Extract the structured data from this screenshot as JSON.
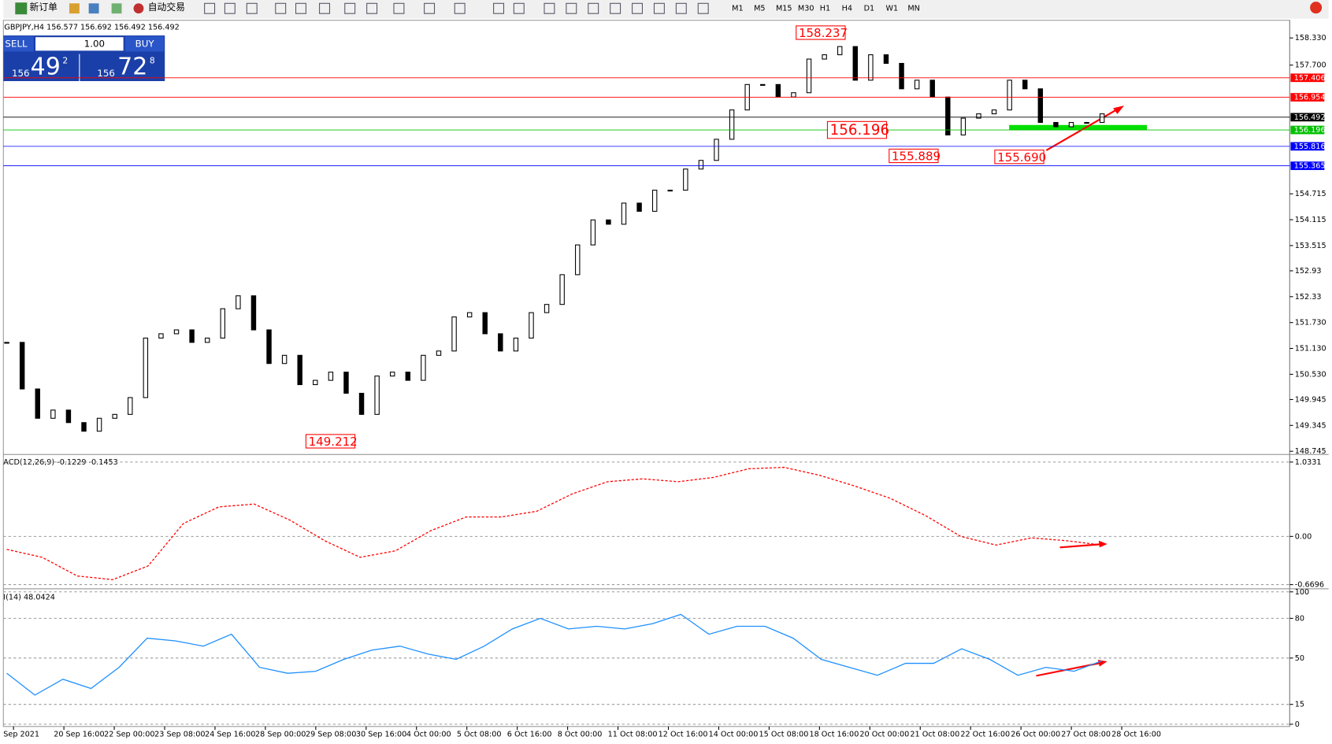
{
  "toolbar": {
    "new_order": "新订单",
    "auto_trading": "自动交易",
    "timeframes": [
      "M1",
      "M5",
      "M15",
      "M30",
      "H1",
      "H4",
      "D1",
      "W1",
      "MN"
    ]
  },
  "trade_panel": {
    "sell": "SELL",
    "lots": "1.00",
    "buy": "BUY",
    "bid_big": "156",
    "bid_main": "49",
    "bid_sup": "2",
    "ask_big": "156",
    "ask_main": "72",
    "ask_sup": "8"
  },
  "time_labels": [
    "Sep 2021",
    "20 Sep 16:00",
    "22 Sep 00:00",
    "23 Sep 08:00",
    "24 Sep 16:00",
    "28 Sep 00:00",
    "29 Sep 08:00",
    "30 Sep 16:00",
    "4 Oct 00:00",
    "5 Oct 08:00",
    "6 Oct 16:00",
    "8 Oct 00:00",
    "11 Oct 08:00",
    "12 Oct 16:00",
    "14 Oct 00:00",
    "15 Oct 08:00",
    "18 Oct 16:00",
    "20 Oct 00:00",
    "21 Oct 08:00",
    "22 Oct 16:00",
    "26 Oct 00:00",
    "27 Oct 08:00",
    "28 Oct 16:00"
  ],
  "chart_data": [
    {
      "type": "candlestick",
      "title": "GBPJPY,H4  156.577 156.692 156.492 156.492",
      "color": "#000000",
      "values": [
        151.27,
        150.19,
        149.51,
        149.7,
        149.41,
        149.21,
        149.51,
        149.6,
        149.99,
        151.37,
        151.47,
        151.56,
        151.27,
        151.37,
        152.05,
        152.35,
        151.56,
        150.78,
        150.97,
        150.29,
        150.39,
        150.58,
        150.09,
        149.6,
        150.49,
        150.58,
        150.39,
        150.97,
        151.07,
        151.86,
        151.96,
        151.47,
        151.07,
        151.37,
        151.96,
        152.15,
        152.84,
        153.53,
        154.11,
        154.01,
        154.5,
        154.31,
        154.8,
        154.8,
        155.29,
        155.49,
        155.98,
        156.66,
        157.25,
        157.25,
        156.96,
        157.06,
        157.84,
        157.94,
        158.13,
        157.35,
        157.94,
        157.74,
        157.15,
        157.35,
        156.96,
        156.08,
        156.47,
        156.57,
        156.66,
        157.35,
        157.15,
        156.37,
        156.27,
        156.37,
        156.37,
        156.57
      ],
      "ylim": [
        148.69,
        158.72
      ],
      "yticks": [
        {
          "value": 158.33,
          "label": "158.330"
        },
        {
          "value": 157.7,
          "label": "157.700"
        },
        154.715,
        154.115,
        153.515,
        152.93,
        152.33,
        {
          "value": 151.73,
          "label": "151.730"
        },
        {
          "value": 151.13,
          "label": "151.130"
        },
        {
          "value": 150.53,
          "label": "150.530"
        },
        149.945,
        149.345,
        148.745
      ],
      "price_lines": [
        {
          "value": 157.406,
          "color": "#ff0000"
        },
        {
          "value": 156.954,
          "color": "#ff0000"
        },
        {
          "value": 156.492,
          "color": "#000000"
        },
        {
          "value": 156.196,
          "color": "#00c000"
        },
        {
          "value": 155.816,
          "color": "#0000ff"
        },
        {
          "value": 155.365,
          "color": "#0000ff"
        }
      ],
      "annotations": {
        "values": [
          158.237,
          156.196,
          155.889,
          155.69,
          149.212
        ],
        "labels": [
          "158.237",
          "156.196",
          "155.889",
          "155.690",
          "149.212"
        ]
      }
    },
    {
      "type": "line",
      "title": "ACD(12,26,9) -0.1229 -0.1453",
      "color": "#ff0000",
      "values": [
        -0.18,
        -0.29,
        -0.55,
        -0.6,
        -0.41,
        0.18,
        0.41,
        0.45,
        0.23,
        -0.06,
        -0.29,
        -0.2,
        0.08,
        0.27,
        0.27,
        0.35,
        0.59,
        0.76,
        0.8,
        0.76,
        0.82,
        0.94,
        0.96,
        0.85,
        0.7,
        0.53,
        0.29,
        0.0,
        -0.12,
        -0.02,
        -0.06,
        -0.12
      ],
      "ylim": [
        -0.704,
        1.115
      ],
      "yticks": [
        1.0331,
        {
          "value": 0,
          "label": "0.00"
        },
        -0.6696
      ]
    },
    {
      "type": "line",
      "title": "I(14) 48.0424",
      "color": "#1e90ff",
      "values": [
        38.5,
        22,
        34,
        27,
        43,
        65,
        63,
        59,
        68,
        43,
        38.5,
        40,
        49,
        56,
        59,
        53,
        49,
        59,
        72,
        80,
        72,
        74,
        72,
        76,
        83,
        68,
        74,
        74,
        65,
        49,
        43,
        37,
        46,
        46,
        57,
        49,
        37,
        43,
        40,
        48
      ],
      "ylim": [
        -1.7,
        100.4
      ],
      "yticks": [
        100,
        80,
        50,
        15,
        0
      ]
    }
  ]
}
